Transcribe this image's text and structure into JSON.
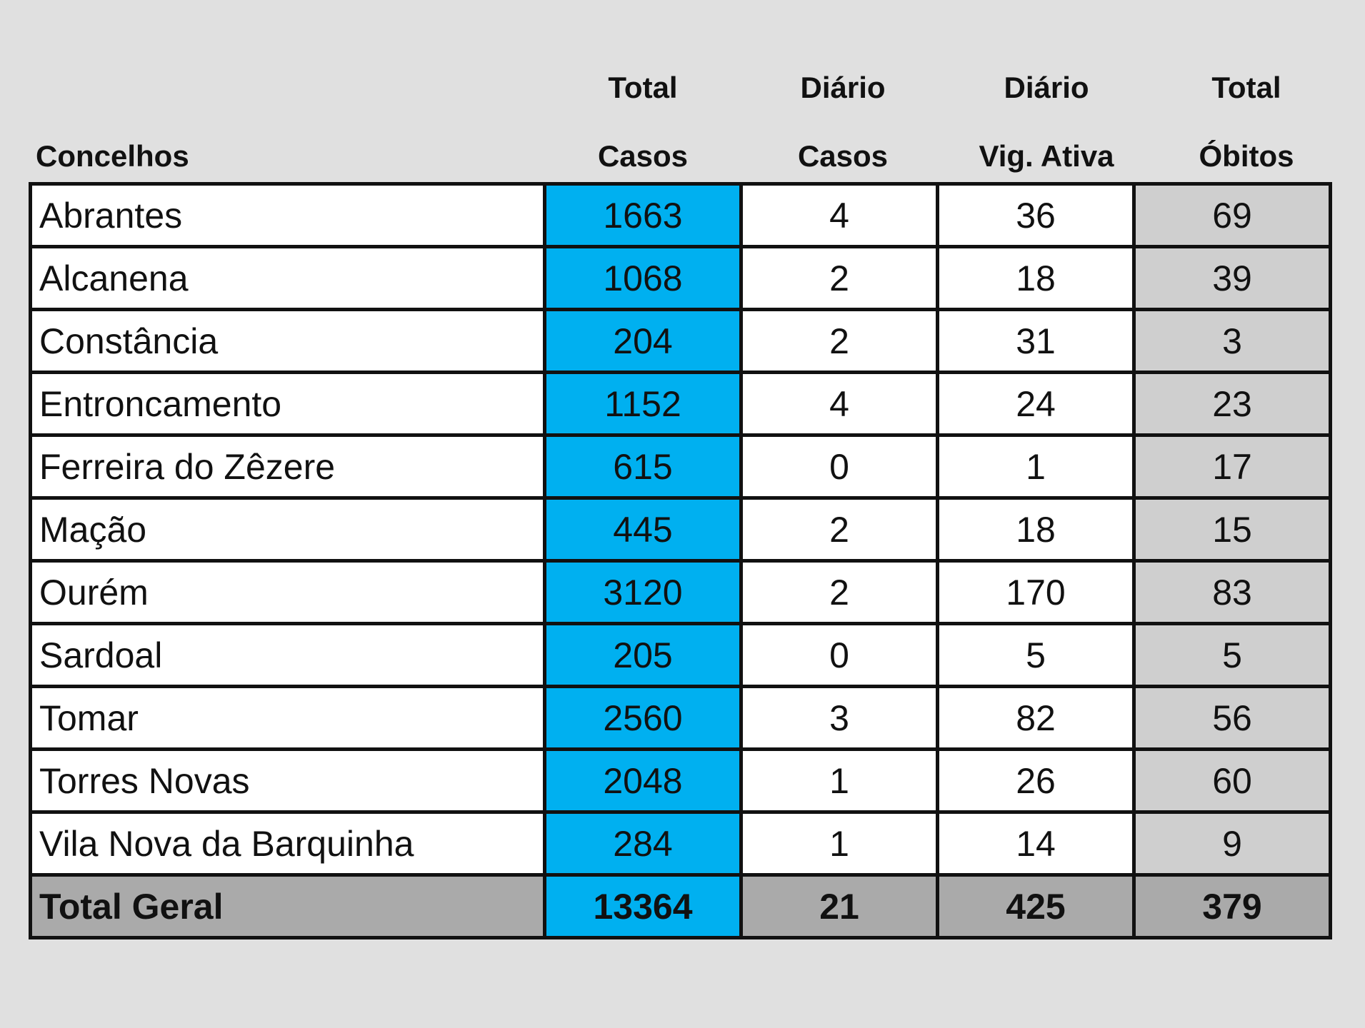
{
  "header": {
    "concelhos": "Concelhos",
    "total_casos_1": "Total",
    "total_casos_2": "Casos",
    "diario_casos_1": "Diário",
    "diario_casos_2": "Casos",
    "diario_vig_1": "Diário",
    "diario_vig_2": "Vig. Ativa",
    "total_obitos_1": "Total",
    "total_obitos_2": "Óbitos"
  },
  "rows": [
    {
      "name": "Abrantes",
      "total_casos": "1663",
      "diario_casos": "4",
      "vig_ativa": "36",
      "obitos": "69"
    },
    {
      "name": "Alcanena",
      "total_casos": "1068",
      "diario_casos": "2",
      "vig_ativa": "18",
      "obitos": "39"
    },
    {
      "name": "Constância",
      "total_casos": "204",
      "diario_casos": "2",
      "vig_ativa": "31",
      "obitos": "3"
    },
    {
      "name": "Entroncamento",
      "total_casos": "1152",
      "diario_casos": "4",
      "vig_ativa": "24",
      "obitos": "23"
    },
    {
      "name": "Ferreira do Zêzere",
      "total_casos": "615",
      "diario_casos": "0",
      "vig_ativa": "1",
      "obitos": "17"
    },
    {
      "name": "Mação",
      "total_casos": "445",
      "diario_casos": "2",
      "vig_ativa": "18",
      "obitos": "15"
    },
    {
      "name": "Ourém",
      "total_casos": "3120",
      "diario_casos": "2",
      "vig_ativa": "170",
      "obitos": "83"
    },
    {
      "name": "Sardoal",
      "total_casos": "205",
      "diario_casos": "0",
      "vig_ativa": "5",
      "obitos": "5"
    },
    {
      "name": "Tomar",
      "total_casos": "2560",
      "diario_casos": "3",
      "vig_ativa": "82",
      "obitos": "56"
    },
    {
      "name": "Torres Novas",
      "total_casos": "2048",
      "diario_casos": "1",
      "vig_ativa": "26",
      "obitos": "60"
    },
    {
      "name": "Vila Nova da Barquinha",
      "total_casos": "284",
      "diario_casos": "1",
      "vig_ativa": "14",
      "obitos": "9"
    }
  ],
  "totals": {
    "name": "Total Geral",
    "total_casos": "13364",
    "diario_casos": "21",
    "vig_ativa": "425",
    "obitos": "379"
  },
  "colors": {
    "total_casos_column": "#00b0f0",
    "obitos_column": "#cfcfcf",
    "totals_row": "#aaaaaa",
    "background": "#e0e0e0"
  }
}
